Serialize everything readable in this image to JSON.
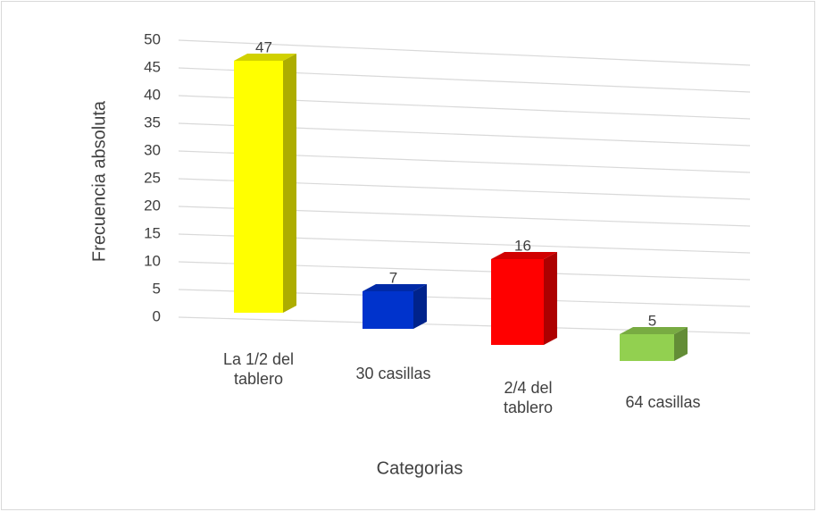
{
  "chart_data": {
    "type": "bar3d",
    "x_label": "Categorias",
    "y_label": "Frecuencia absoluta",
    "categories": [
      "La 1/2 del tablero",
      "30 casillas",
      "2/4 del tablero",
      "64 casillas"
    ],
    "values": [
      47,
      7,
      16,
      5
    ],
    "colors": [
      "#ffff00",
      "#0033cc",
      "#ff0000",
      "#92d050"
    ],
    "ylim": [
      0,
      50
    ],
    "yticks": [
      0,
      5,
      10,
      15,
      20,
      25,
      30,
      35,
      40,
      45,
      50
    ],
    "grid": true
  }
}
